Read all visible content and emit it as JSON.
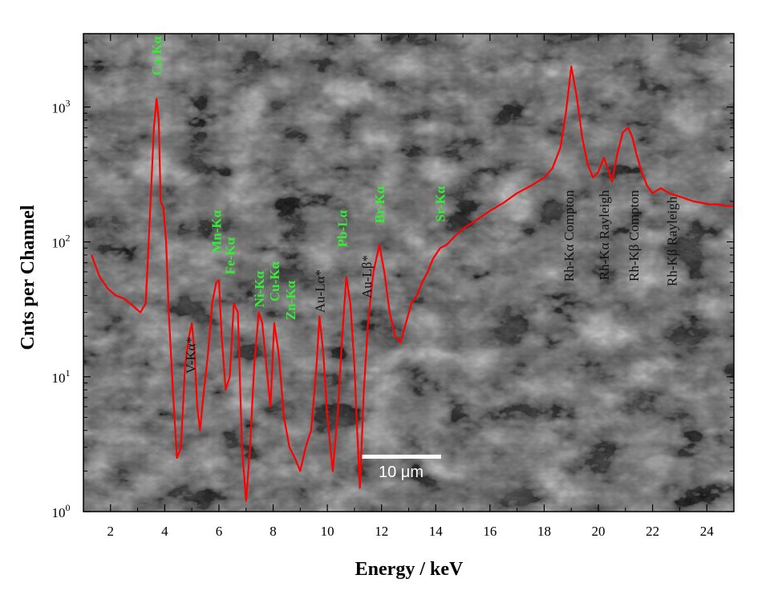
{
  "chart_data": {
    "type": "line",
    "title": "",
    "xlabel": "Energy / keV",
    "ylabel": "Cnts per Channel",
    "xlim": [
      1.0,
      25.0
    ],
    "ylim": [
      1,
      3500
    ],
    "y_scale": "log",
    "grid": false,
    "background": "SEM micrograph of platy crystal aggregate",
    "line_color": "#ff0000",
    "x_ticks": [
      2,
      4,
      6,
      8,
      10,
      12,
      14,
      16,
      18,
      20,
      22,
      24
    ],
    "x_tick_labels": [
      "2",
      "4",
      "6",
      "8",
      "10",
      "12",
      "14",
      "16",
      "18",
      "20",
      "22",
      "24"
    ],
    "y_ticks": [
      1,
      10,
      100,
      1000
    ],
    "y_tick_labels": [
      {
        "base": "10",
        "exp": "0"
      },
      {
        "base": "10",
        "exp": "1"
      },
      {
        "base": "10",
        "exp": "2"
      },
      {
        "base": "10",
        "exp": "3"
      }
    ],
    "scale_bar_label": "10 μm",
    "series": [
      {
        "x": [
          1.3,
          1.6,
          1.9,
          2.2,
          2.5,
          2.8,
          3.1,
          3.3,
          3.45,
          3.6,
          3.7,
          3.78,
          3.85,
          3.95,
          4.05,
          4.15,
          4.3,
          4.45,
          4.6,
          4.75,
          4.9,
          5.0,
          5.1,
          5.2,
          5.3,
          5.45,
          5.6,
          5.75,
          5.9,
          6.0,
          6.1,
          6.25,
          6.4,
          6.55,
          6.7,
          6.85,
          7.0,
          7.15,
          7.3,
          7.47,
          7.6,
          7.75,
          7.9,
          8.04,
          8.2,
          8.4,
          8.6,
          8.8,
          9.0,
          9.2,
          9.4,
          9.6,
          9.71,
          9.85,
          10.0,
          10.2,
          10.4,
          10.55,
          10.7,
          10.85,
          11.0,
          11.1,
          11.2,
          11.35,
          11.5,
          11.7,
          11.92,
          12.1,
          12.3,
          12.5,
          12.7,
          12.9,
          13.1,
          13.3,
          13.5,
          13.7,
          13.9,
          14.16,
          14.4,
          14.7,
          15.0,
          15.5,
          16.0,
          16.5,
          17.0,
          17.5,
          18.0,
          18.3,
          18.6,
          18.8,
          19.0,
          19.2,
          19.4,
          19.6,
          19.8,
          20.0,
          20.2,
          20.35,
          20.5,
          20.7,
          20.9,
          21.1,
          21.25,
          21.4,
          21.6,
          21.8,
          22.0,
          22.3,
          22.6,
          22.9,
          23.2,
          23.5,
          23.8,
          24.1,
          24.4,
          24.7,
          25.0
        ],
        "y": [
          80,
          55,
          45,
          40,
          38,
          34,
          30,
          35,
          150,
          700,
          1150,
          800,
          200,
          180,
          100,
          30,
          8,
          2.5,
          3,
          12,
          20,
          25,
          15,
          6,
          4,
          8,
          15,
          35,
          50,
          52,
          20,
          8,
          10,
          35,
          30,
          3,
          1.2,
          3,
          12,
          30,
          25,
          12,
          6,
          25,
          15,
          5,
          3,
          2.5,
          2,
          3,
          4,
          12,
          28,
          15,
          5,
          2,
          6,
          20,
          55,
          35,
          12,
          4,
          1.5,
          8,
          25,
          60,
          95,
          60,
          30,
          20,
          18,
          25,
          35,
          40,
          50,
          60,
          75,
          90,
          95,
          110,
          125,
          145,
          170,
          195,
          230,
          260,
          300,
          350,
          500,
          900,
          2000,
          1200,
          600,
          380,
          300,
          330,
          420,
          350,
          280,
          450,
          650,
          700,
          600,
          450,
          330,
          260,
          230,
          250,
          230,
          220,
          210,
          200,
          195,
          190,
          190,
          185,
          185
        ]
      }
    ],
    "annotations": [
      {
        "text": "Ca-Kα",
        "x": 3.69,
        "color": "#33ee33"
      },
      {
        "text": "V-Kα*",
        "x": 4.95,
        "color": "#111111"
      },
      {
        "text": "Mn-Kα",
        "x": 5.9,
        "color": "#33ee33"
      },
      {
        "text": "Fe-Kα",
        "x": 6.4,
        "color": "#33ee33"
      },
      {
        "text": "Ni-Kα",
        "x": 7.48,
        "color": "#33ee33"
      },
      {
        "text": "Cu-Kα",
        "x": 8.04,
        "color": "#33ee33"
      },
      {
        "text": "Zn-Kα",
        "x": 8.64,
        "color": "#33ee33"
      },
      {
        "text": "Au-Lα*",
        "x": 9.71,
        "color": "#111111"
      },
      {
        "text": "Pb-Lα",
        "x": 10.55,
        "color": "#33ee33"
      },
      {
        "text": "Au-Lβ*",
        "x": 11.44,
        "color": "#111111"
      },
      {
        "text": "Br-Kα",
        "x": 11.92,
        "color": "#33ee33"
      },
      {
        "text": "Sr-Kα",
        "x": 14.16,
        "color": "#33ee33"
      },
      {
        "text": "Rh-Kα Compton",
        "x": 18.9,
        "color": "#111111"
      },
      {
        "text": "Rh-Kα Rayleigh",
        "x": 20.2,
        "color": "#111111"
      },
      {
        "text": "Rh-Kβ Compton",
        "x": 21.3,
        "color": "#111111"
      },
      {
        "text": "Rh-Kβ Rayleigh",
        "x": 22.7,
        "color": "#111111"
      }
    ]
  }
}
